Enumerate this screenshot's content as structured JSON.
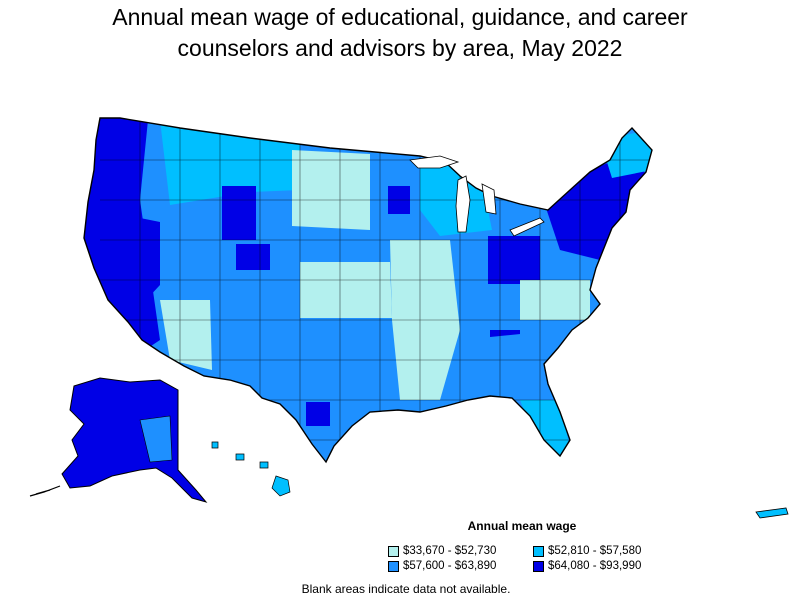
{
  "title": {
    "line1": "Annual mean wage of educational, guidance, and career",
    "line2": "counselors and advisors by area, May 2022"
  },
  "legend": {
    "title": "Annual mean wage",
    "items": [
      {
        "label": "$33,670 - $52,730",
        "color": "#b3f0ee"
      },
      {
        "label": "$52,810 - $57,580",
        "color": "#00bfff"
      },
      {
        "label": "$57,600 - $63,890",
        "color": "#1e90ff"
      },
      {
        "label": "$64,080 - $93,990",
        "color": "#0000e6"
      }
    ]
  },
  "footnote": "Blank areas indicate data not available.",
  "colors": {
    "tier1": "#b3f0ee",
    "tier2": "#00bfff",
    "tier3": "#1e90ff",
    "tier4": "#0000e6",
    "border": "#000000"
  }
}
